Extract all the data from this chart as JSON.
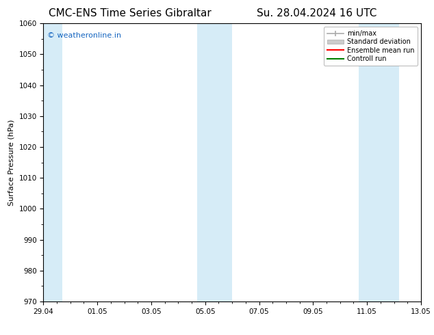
{
  "title_left": "CMC-ENS Time Series Gibraltar",
  "title_right": "Su. 28.04.2024 16 UTC",
  "ylabel": "Surface Pressure (hPa)",
  "ylim": [
    970,
    1060
  ],
  "yticks": [
    970,
    980,
    990,
    1000,
    1010,
    1020,
    1030,
    1040,
    1050,
    1060
  ],
  "xlim_start": 0,
  "xlim_end": 14,
  "xtick_labels": [
    "29.04",
    "01.05",
    "03.05",
    "05.05",
    "07.05",
    "09.05",
    "11.05",
    "13.05"
  ],
  "xtick_positions": [
    0,
    2,
    4,
    6,
    8,
    10,
    12,
    14
  ],
  "shaded_regions": [
    {
      "x_start": -0.1,
      "x_end": 0.7
    },
    {
      "x_start": 5.7,
      "x_end": 7.0
    },
    {
      "x_start": 11.7,
      "x_end": 13.2
    }
  ],
  "shaded_color": "#d6ecf7",
  "bg_color": "#ffffff",
  "watermark_text": "© weatheronline.in",
  "watermark_color": "#1565C0",
  "legend_entries": [
    {
      "label": "min/max",
      "color": "#aaaaaa",
      "lw": 1.2
    },
    {
      "label": "Standard deviation",
      "color": "#cccccc",
      "lw": 6
    },
    {
      "label": "Ensemble mean run",
      "color": "#ff0000",
      "lw": 1.5
    },
    {
      "label": "Controll run",
      "color": "#008000",
      "lw": 1.5
    }
  ],
  "title_fontsize": 11,
  "axis_label_fontsize": 8,
  "tick_fontsize": 7.5,
  "watermark_fontsize": 8,
  "legend_fontsize": 7
}
